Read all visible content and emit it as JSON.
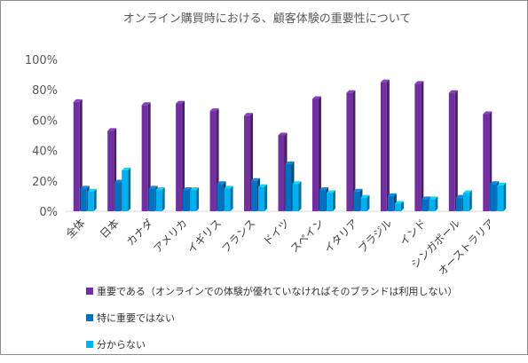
{
  "chart_data": {
    "type": "bar",
    "title": "オンライン購買時における、顧客体験の重要性について",
    "categories": [
      "全体",
      "日本",
      "カナダ",
      "アメリカ",
      "イギリス",
      "フランス",
      "ドイツ",
      "スペイン",
      "イタリア",
      "ブラジル",
      "インド",
      "シンガポール",
      "オーストラリア"
    ],
    "series": [
      {
        "name": "重要である（オンラインでの体験が優れていなければそのブランドは利用しない）",
        "color": "#7030a0",
        "values": [
          72,
          53,
          70,
          71,
          66,
          63,
          50,
          74,
          78,
          85,
          84,
          78,
          64
        ]
      },
      {
        "name": "特に重要ではない",
        "color": "#0070c0",
        "values": [
          15,
          19,
          15,
          14,
          18,
          20,
          31,
          14,
          13,
          10,
          8,
          9,
          18
        ]
      },
      {
        "name": "分からない",
        "color": "#00b0f0",
        "values": [
          13,
          27,
          14,
          14,
          15,
          16,
          18,
          12,
          9,
          5,
          8,
          12,
          17
        ]
      }
    ],
    "yticks": [
      "0%",
      "20%",
      "40%",
      "60%",
      "80%",
      "100%"
    ],
    "ylim": [
      0,
      100
    ],
    "grid": false,
    "legend_position": "bottom"
  }
}
